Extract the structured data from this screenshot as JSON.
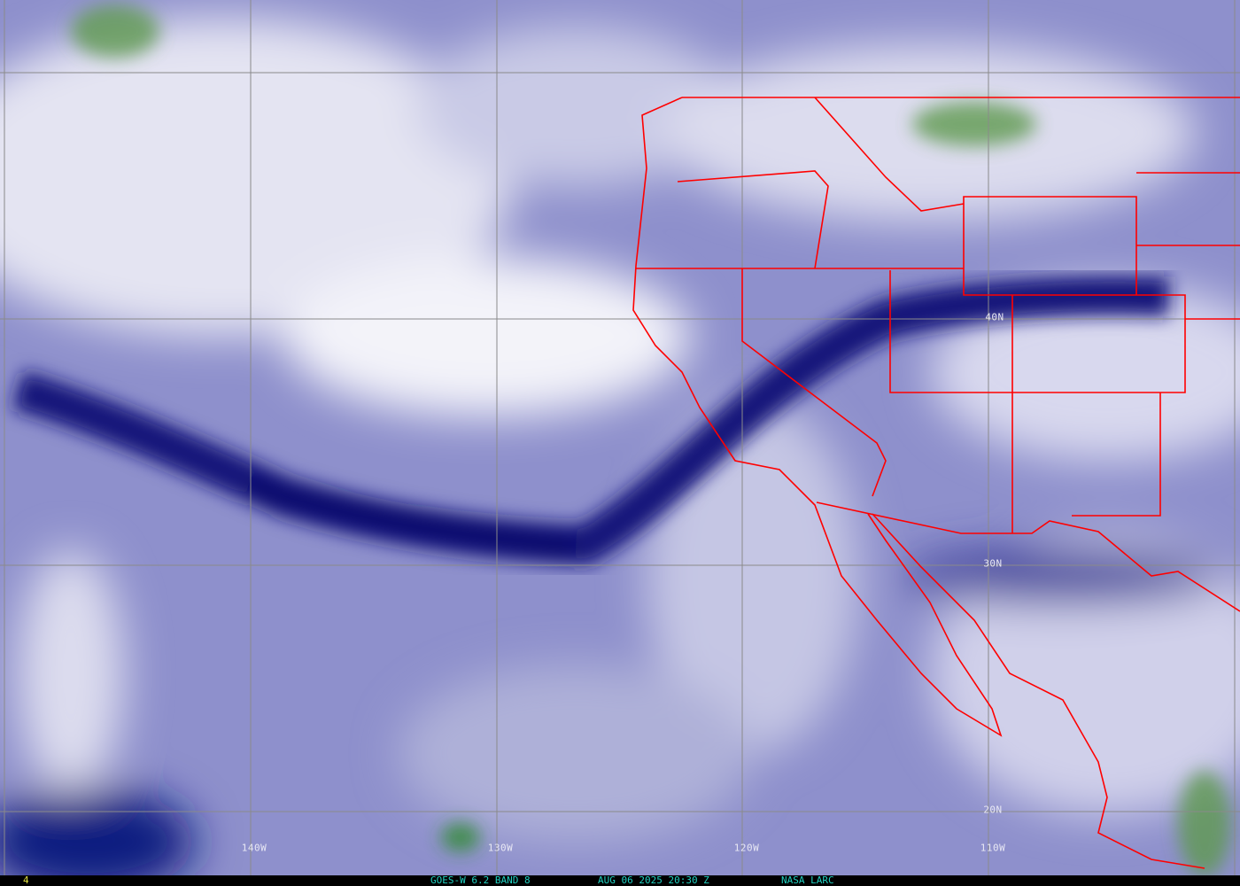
{
  "footer": {
    "frame_number": "4",
    "satellite_band": "GOES-W 6.2 BAND 8",
    "datetime": "AUG 06 2025 20:30 Z",
    "credit": "NASA LARC"
  },
  "grid_labels": {
    "lon": [
      "140W",
      "130W",
      "120W",
      "110W"
    ],
    "lat": [
      "40N",
      "30N",
      "20N"
    ]
  },
  "colors": {
    "boundaries": "#ff0000",
    "grid": "#8a8a8a",
    "footer_text": "#20d0c0",
    "frame_number": "#e0e040",
    "moist": "#f2f2f8",
    "dry": "#0a0f6e",
    "cloud_tops": "#5a9a4a"
  }
}
